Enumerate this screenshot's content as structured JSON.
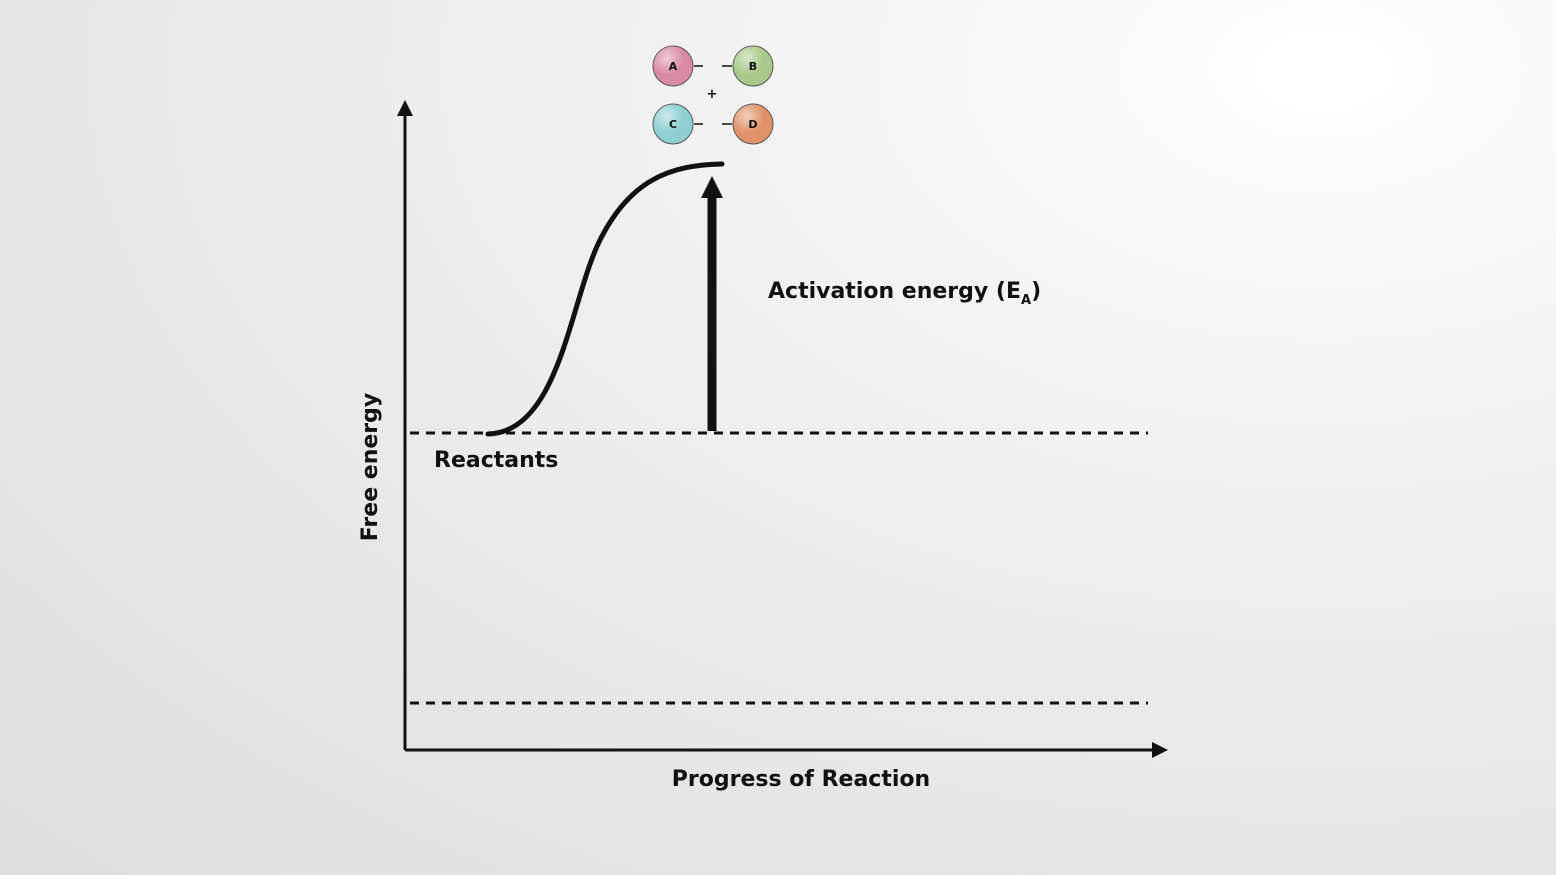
{
  "axes": {
    "y_label": "Free energy",
    "x_label": "Progress of Reaction"
  },
  "labels": {
    "reactants": "Reactants",
    "activation_energy": "Activation energy (E",
    "activation_energy_subscript": "A",
    "activation_energy_close": ")"
  },
  "molecules": {
    "atoms": [
      {
        "letter": "A",
        "color": "#d98aa5"
      },
      {
        "letter": "B",
        "color": "#a8c98a"
      },
      {
        "letter": "C",
        "color": "#8fcfd2"
      },
      {
        "letter": "D",
        "color": "#e0936a"
      }
    ],
    "plus": "+"
  },
  "colors": {
    "ink": "#111111",
    "background": "#e8e8e8"
  }
}
